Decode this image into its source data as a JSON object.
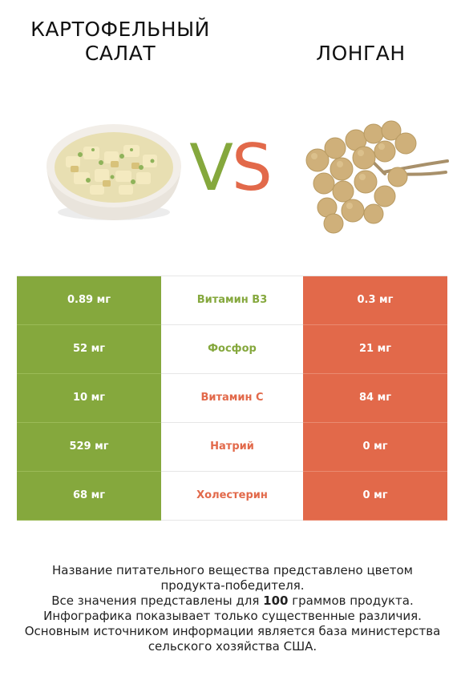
{
  "header": {
    "left_title_line1": "КАРТОФЕЛЬНЫЙ",
    "left_title_line2": "САЛАТ",
    "right_title": "ЛОНГАН",
    "vs_v": "V",
    "vs_s": "S"
  },
  "colors": {
    "left_accent": "#85a83d",
    "right_accent": "#e2694a"
  },
  "rows": [
    {
      "left": "0.89 мг",
      "name": "Витамин B3",
      "right": "0.3 мг",
      "winner": "left"
    },
    {
      "left": "52 мг",
      "name": "Фосфор",
      "right": "21 мг",
      "winner": "left"
    },
    {
      "left": "10 мг",
      "name": "Витамин C",
      "right": "84 мг",
      "winner": "right"
    },
    {
      "left": "529 мг",
      "name": "Натрий",
      "right": "0 мг",
      "winner": "right"
    },
    {
      "left": "68 мг",
      "name": "Холестерин",
      "right": "0 мг",
      "winner": "right"
    }
  ],
  "footer": {
    "line1": "Название питательного вещества представлено цветом",
    "line2": "продукта-победителя.",
    "line3_pre": "Все значения представлены для ",
    "line3_bold": "100",
    "line3_post": " граммов продукта.",
    "line4": "Инфографика показывает только существенные различия.",
    "line5": "Основным источником информации является база министерства",
    "line6": "сельского хозяйства США."
  }
}
